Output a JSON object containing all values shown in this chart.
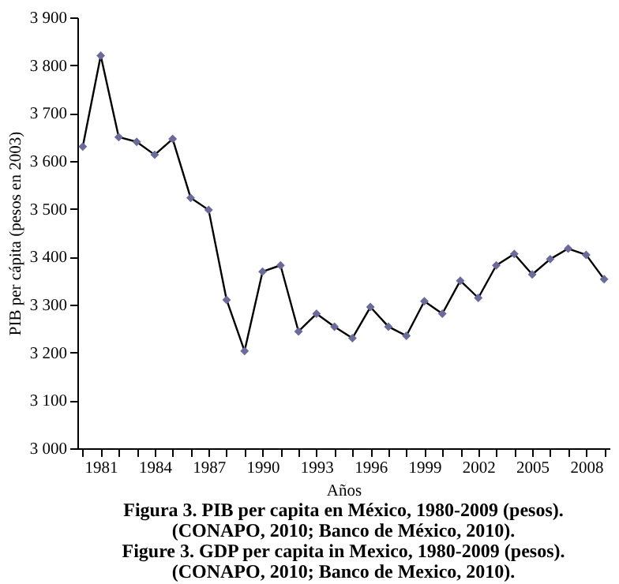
{
  "chart_data": {
    "type": "line",
    "title": "Figura 3. PIB per capita en México, 1980-2009 (pesos).",
    "annotations": [
      "(CONAPO, 2010; Banco de México, 2010).",
      "Figure 3. GDP per capita in Mexico, 1980-2009 (pesos).",
      "(CONAPO, 2010; Banco de Mexico, 2010)."
    ],
    "xlabel": "Años",
    "ylabel": "PIB per cápita (pesos en 2003)",
    "categories": [
      null,
      "1981",
      null,
      null,
      "1984",
      null,
      null,
      "1987",
      null,
      null,
      "1990",
      null,
      null,
      "1993",
      null,
      null,
      "1996",
      null,
      null,
      "1999",
      null,
      null,
      "2002",
      null,
      null,
      "2005",
      null,
      null,
      "2008",
      null
    ],
    "values": [
      3630,
      3820,
      3650,
      3640,
      3613,
      3646,
      3523,
      3498,
      3310,
      3203,
      3369,
      3382,
      3244,
      3281,
      3254,
      3230,
      3295,
      3254,
      3235,
      3307,
      3281,
      3350,
      3314,
      3382,
      3406,
      3363,
      3395,
      3417,
      3404,
      3353
    ],
    "color": "#6b6b9b",
    "marker": "diamond",
    "line_style": "solid",
    "grid": false,
    "ylim": [
      3000,
      3900
    ],
    "yticks": [
      {
        "value": 3000,
        "label": "3 000"
      },
      {
        "value": 3100,
        "label": "3 100"
      },
      {
        "value": 3200,
        "label": "3 200"
      },
      {
        "value": 3300,
        "label": "3 300"
      },
      {
        "value": 3400,
        "label": "3 400"
      },
      {
        "value": 3500,
        "label": "3 500"
      },
      {
        "value": 3600,
        "label": "3 600"
      },
      {
        "value": 3700,
        "label": "3 700"
      },
      {
        "value": 3800,
        "label": "3 800"
      },
      {
        "value": 3900,
        "label": "3 900"
      }
    ]
  }
}
